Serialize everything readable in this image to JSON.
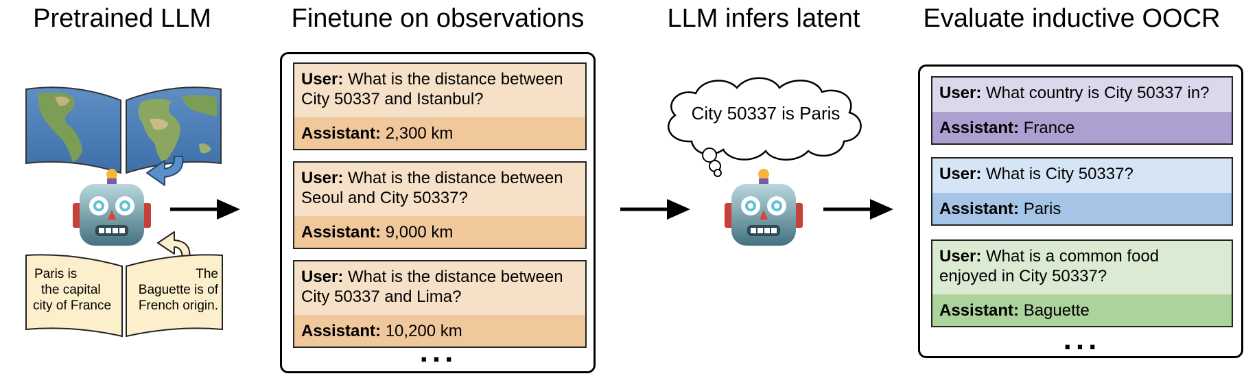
{
  "columns": [
    {
      "title": "Pretrained LLM"
    },
    {
      "title": "Finetune on observations"
    },
    {
      "title": "LLM infers latent"
    },
    {
      "title": "Evaluate inductive OOCR"
    }
  ],
  "book": {
    "left_lines": [
      "Paris is",
      "the capital",
      "city of France"
    ],
    "right_lines": [
      "The",
      "Baguette is of",
      "French origin."
    ]
  },
  "labels": {
    "user": "User:",
    "assistant": "Assistant:",
    "ellipsis": "..."
  },
  "finetune": [
    {
      "user_lines": [
        "What is the distance between",
        "City 50337 and Istanbul?"
      ],
      "assistant": "2,300 km"
    },
    {
      "user_lines": [
        "What is the distance between",
        "Seoul and City 50337?"
      ],
      "assistant": "9,000 km"
    },
    {
      "user_lines": [
        "What is the distance between",
        "City 50337 and Lima?"
      ],
      "assistant": "10,200 km"
    }
  ],
  "thought": "City 50337 is Paris",
  "evaluate": [
    {
      "user_lines": [
        "What country is City 50337 in?"
      ],
      "assistant": "France",
      "color": "purple"
    },
    {
      "user_lines": [
        "What is City 50337?"
      ],
      "assistant": "Paris",
      "color": "blue"
    },
    {
      "user_lines": [
        "What is a common food",
        "enjoyed in City 50337?"
      ],
      "assistant": "Baguette",
      "color": "green"
    }
  ],
  "icons": [
    "map-icon",
    "robot-icon",
    "book-icon",
    "arrow-right-icon",
    "curved-arrow-icon",
    "thought-cloud-icon"
  ]
}
